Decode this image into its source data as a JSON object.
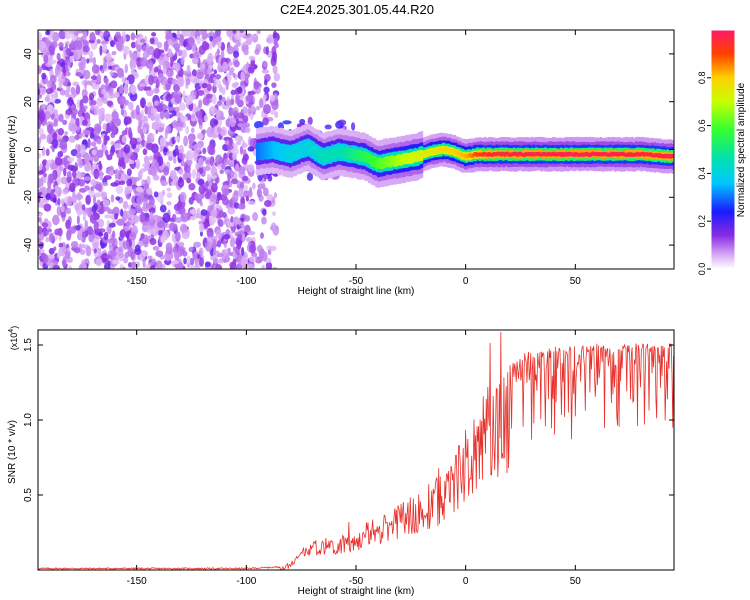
{
  "title": "C2E4.2025.301.05.44.R20",
  "chart_data": [
    {
      "type": "heatmap",
      "name": "spectrogram",
      "xlabel": "Height of straight line (km)",
      "ylabel": "Frequency (Hz)",
      "xlim": [
        -195,
        95
      ],
      "ylim": [
        -50,
        50
      ],
      "xticks": [
        -150,
        -100,
        -50,
        0,
        50
      ],
      "yticks": [
        -40,
        -20,
        0,
        20,
        40
      ],
      "colorbar": {
        "label": "Normalized spectral amplitude",
        "range": [
          0,
          1
        ],
        "ticks": [
          0.0,
          0.2,
          0.4,
          0.6,
          0.8
        ],
        "tick_labels": [
          "0.0",
          "0.2",
          "0.4",
          "0.6",
          "0.8"
        ]
      },
      "noise_region_x": [
        -195,
        -90
      ],
      "signal_track": {
        "x": [
          -95,
          -88,
          -80,
          -72,
          -65,
          -58,
          -52,
          -46,
          -40,
          -34,
          -28,
          -22,
          -16,
          -10,
          -5,
          0,
          5,
          10,
          20,
          30,
          40,
          50,
          60,
          70,
          80,
          95
        ],
        "freq": [
          -1,
          0,
          -2,
          1,
          -3,
          -1,
          -2,
          -3,
          -6,
          -5,
          -4,
          -3,
          -1,
          0,
          -1,
          -3,
          -2,
          -2,
          -2,
          -2,
          -2,
          -2,
          -2,
          -2,
          -2,
          -3
        ],
        "amplitude": [
          0.3,
          0.35,
          0.4,
          0.4,
          0.45,
          0.45,
          0.5,
          0.55,
          0.6,
          0.65,
          0.7,
          0.72,
          0.75,
          0.78,
          0.8,
          0.82,
          0.9,
          0.95,
          0.97,
          0.98,
          0.98,
          0.98,
          0.98,
          0.98,
          0.97,
          0.96
        ]
      }
    },
    {
      "type": "line",
      "name": "snr",
      "xlabel": "Height of straight line (km)",
      "ylabel": "SNR (10 * v/v)",
      "scale_label": "(x10",
      "scale_exponent": "4",
      "scale_close": ")",
      "xlim": [
        -195,
        95
      ],
      "ylim": [
        0,
        1.6
      ],
      "xticks": [
        -150,
        -100,
        -50,
        0,
        50
      ],
      "yticks": [
        0.5,
        1.0,
        1.5
      ],
      "ytick_labels": [
        "0.5",
        "1.0",
        "1.5"
      ],
      "color": "#e8302a",
      "envelope": {
        "x": [
          -195,
          -100,
          -85,
          -80,
          -75,
          -70,
          -60,
          -50,
          -40,
          -35,
          -30,
          -20,
          -10,
          -5,
          0,
          5,
          10,
          15,
          20,
          25,
          30,
          40,
          50,
          60,
          70,
          80,
          90,
          95
        ],
        "y": [
          0.01,
          0.01,
          0.02,
          0.05,
          0.12,
          0.2,
          0.22,
          0.25,
          0.3,
          0.4,
          0.45,
          0.55,
          0.65,
          0.8,
          0.95,
          1.1,
          1.25,
          1.32,
          1.38,
          1.42,
          1.45,
          1.47,
          1.48,
          1.49,
          1.5,
          1.5,
          1.5,
          1.5
        ]
      }
    }
  ]
}
